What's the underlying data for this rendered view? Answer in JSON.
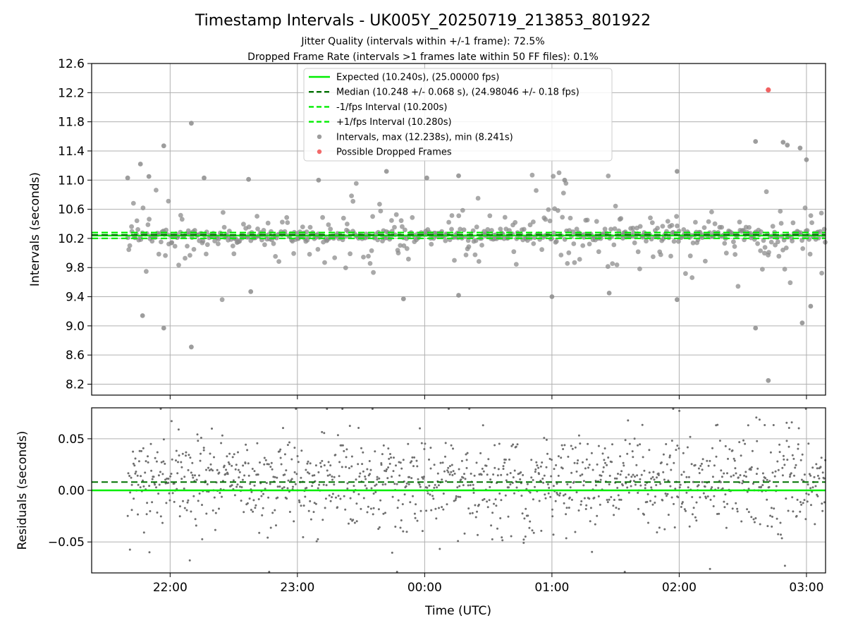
{
  "title": "Timestamp Intervals - UK005Y_20250719_213853_801922",
  "subtitle_1": "Jitter Quality (intervals within +/-1 frame): 72.5%",
  "subtitle_2": "Dropped Frame Rate (intervals >1 frames late within 50 FF files): 0.1%",
  "colors": {
    "expected": "#00ee00",
    "median": "#007000",
    "interval_bound": "#00ee00",
    "points": "#8c8c8c",
    "dropped": "#f05050",
    "residual_points": "#6e6e6e",
    "grid": "#b0b0b0"
  },
  "chart_data": [
    {
      "type": "scatter",
      "panel": "top",
      "xlabel": "",
      "ylabel": "Intervals (seconds)",
      "ylim": [
        8.05,
        12.6
      ],
      "xlim": [
        "21:23",
        "03:09"
      ],
      "x_ticks": [
        "22:00",
        "23:00",
        "00:00",
        "01:00",
        "02:00",
        "03:00"
      ],
      "y_ticks": [
        "8.2",
        "8.6",
        "9.0",
        "9.4",
        "9.8",
        "10.2",
        "10.6",
        "11.0",
        "11.4",
        "11.8",
        "12.2",
        "12.6"
      ],
      "grid": true,
      "legend_position": "top-center",
      "lines": [
        {
          "name": "Expected (10.240s), (25.00000 fps)",
          "y": 10.24,
          "style": "solid"
        },
        {
          "name": "Median (10.248 +/- 0.068 s), (24.98046 +/- 0.18 fps)",
          "y": 10.248,
          "style": "dashed"
        },
        {
          "name": "-1/fps Interval (10.200s)",
          "y": 10.2,
          "style": "dashed"
        },
        {
          "name": "+1/fps Interval (10.280s)",
          "y": 10.28,
          "style": "dashed"
        }
      ],
      "scatter_series": [
        {
          "name": "Intervals, max (12.238s), min (8.241s)",
          "max": 12.238,
          "min": 8.241
        },
        {
          "name": "Possible Dropped Frames",
          "points": [
            {
              "x": "02:42",
              "y": 12.238
            }
          ]
        }
      ],
      "notable_points": [
        {
          "x": "21:40",
          "y": 11.03
        },
        {
          "x": "21:46",
          "y": 11.22
        },
        {
          "x": "21:47",
          "y": 9.14
        },
        {
          "x": "21:50",
          "y": 11.05
        },
        {
          "x": "21:57",
          "y": 11.47
        },
        {
          "x": "21:57",
          "y": 8.97
        },
        {
          "x": "22:10",
          "y": 11.78
        },
        {
          "x": "22:10",
          "y": 8.71
        },
        {
          "x": "22:16",
          "y": 11.03
        },
        {
          "x": "22:37",
          "y": 11.01
        },
        {
          "x": "22:38",
          "y": 9.47
        },
        {
          "x": "23:10",
          "y": 11.0
        },
        {
          "x": "23:42",
          "y": 11.12
        },
        {
          "x": "23:50",
          "y": 9.37
        },
        {
          "x": "00:01",
          "y": 11.03
        },
        {
          "x": "00:16",
          "y": 11.06
        },
        {
          "x": "00:16",
          "y": 9.42
        },
        {
          "x": "01:00",
          "y": 9.4
        },
        {
          "x": "01:06",
          "y": 11.0
        },
        {
          "x": "01:27",
          "y": 9.45
        },
        {
          "x": "01:59",
          "y": 11.12
        },
        {
          "x": "01:59",
          "y": 9.36
        },
        {
          "x": "02:36",
          "y": 11.53
        },
        {
          "x": "02:36",
          "y": 8.97
        },
        {
          "x": "02:42",
          "y": 8.25
        },
        {
          "x": "02:49",
          "y": 11.52
        },
        {
          "x": "02:51",
          "y": 11.48
        },
        {
          "x": "02:57",
          "y": 11.44
        },
        {
          "x": "02:58",
          "y": 9.04
        },
        {
          "x": "03:00",
          "y": 11.28
        },
        {
          "x": "03:02",
          "y": 9.27
        }
      ]
    },
    {
      "type": "scatter",
      "panel": "bottom",
      "xlabel": "Time (UTC)",
      "ylabel": "Residuals (seconds)",
      "ylim": [
        -0.08,
        0.08
      ],
      "xlim": [
        "21:23",
        "03:09"
      ],
      "x_ticks": [
        "22:00",
        "23:00",
        "00:00",
        "01:00",
        "02:00",
        "03:00"
      ],
      "y_ticks": [
        "−0.05",
        "0.00",
        "0.05"
      ],
      "grid": true,
      "lines": [
        {
          "name": "Expected",
          "y": 0.0,
          "style": "solid"
        },
        {
          "name": "Median",
          "y": 0.008,
          "style": "dashed"
        }
      ],
      "residual_range": [
        -0.08,
        0.08
      ]
    }
  ]
}
